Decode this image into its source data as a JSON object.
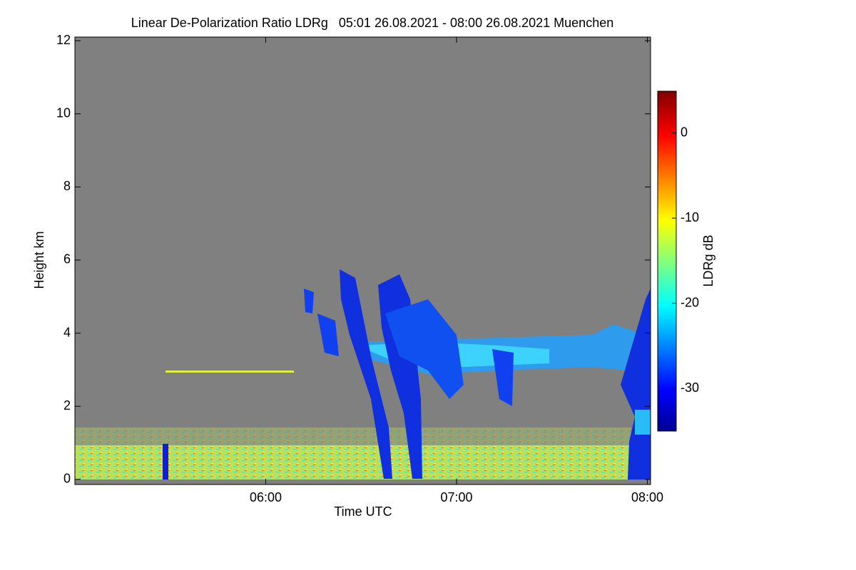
{
  "chart_data": {
    "type": "heatmap",
    "title": "Linear De-Polarization Ratio LDRg   05:01 26.08.2021 - 08:00 26.08.2021 Muenchen",
    "x_label": "Time UTC",
    "y_label": "Height km",
    "xlim": [
      300,
      481
    ],
    "xticks": [
      {
        "value": 360,
        "label": "06:00"
      },
      {
        "value": 420,
        "label": "07:00"
      },
      {
        "value": 480,
        "label": "08:00"
      }
    ],
    "ylim": [
      -0.14,
      12.1
    ],
    "yticks": [
      0,
      2,
      4,
      6,
      8,
      10,
      12
    ],
    "colorbar": {
      "label": "LDRg dB",
      "lim": [
        -35,
        4.9
      ],
      "ticks": [
        0,
        -10,
        -20,
        -30
      ]
    }
  }
}
